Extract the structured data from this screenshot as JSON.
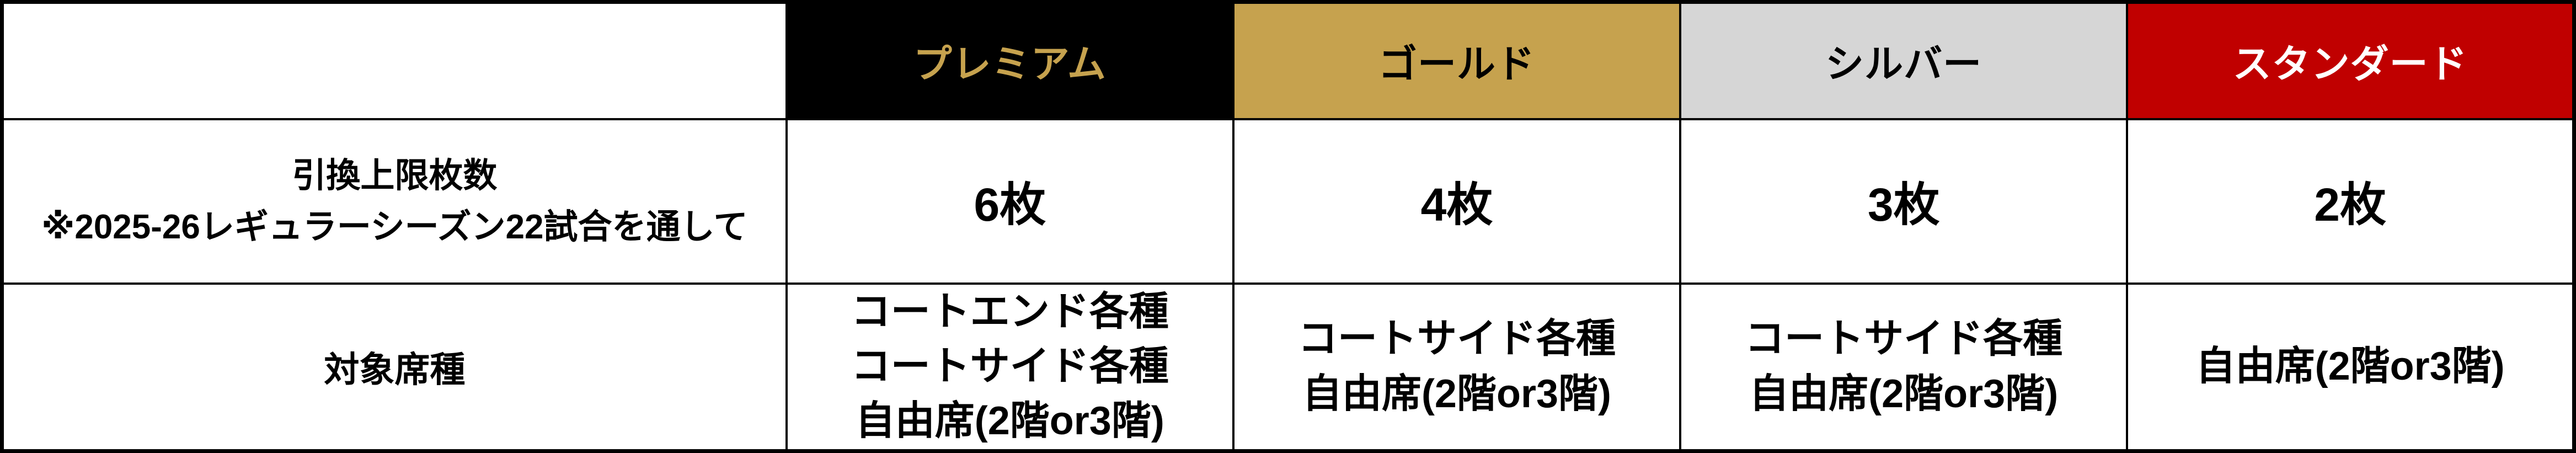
{
  "colors": {
    "black": "#000000",
    "gold": "#C6A24E",
    "silver": "#D6D6D6",
    "red": "#C00000",
    "white": "#FFFFFF",
    "border": "#000000"
  },
  "header": {
    "corner_label": "",
    "tiers": [
      {
        "id": "premium",
        "label": "プレミアム",
        "bg": "#000000",
        "fg": "#C6A24E"
      },
      {
        "id": "gold",
        "label": "ゴールド",
        "bg": "#C6A24E",
        "fg": "#000000"
      },
      {
        "id": "silver",
        "label": "シルバー",
        "bg": "#D6D6D6",
        "fg": "#000000"
      },
      {
        "id": "standard",
        "label": "スタンダード",
        "bg": "#C00000",
        "fg": "#FFFFFF"
      }
    ]
  },
  "limit_row": {
    "label": "引換上限枚数",
    "note": "※2025-26レギュラーシーズン22試合を通して",
    "values": [
      "6枚",
      "4枚",
      "3枚",
      "2枚"
    ]
  },
  "seat_row": {
    "label": "対象席種",
    "cells": [
      {
        "tier": "premium",
        "lines": [
          "コートエンド各種",
          "コートサイド各種",
          "自由席(2階or3階)"
        ]
      },
      {
        "tier": "gold",
        "lines": [
          "コートサイド各種",
          "自由席(2階or3階)"
        ]
      },
      {
        "tier": "silver",
        "lines": [
          "コートサイド各種",
          "自由席(2階or3階)"
        ]
      },
      {
        "tier": "standard",
        "lines": [
          "自由席(2階or3階)"
        ]
      }
    ]
  }
}
